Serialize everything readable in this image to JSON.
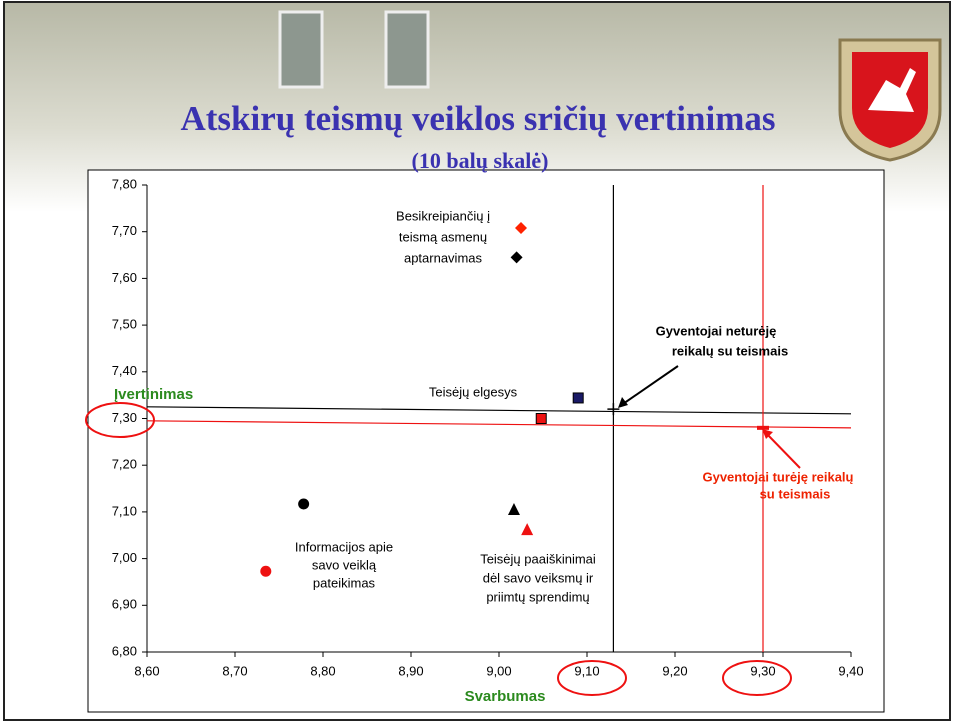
{
  "chart_data": {
    "type": "scatter",
    "title": "Atskirų teismų veiklos sričių vertinimas",
    "subtitle": "(10 balų skalė)",
    "x_label": "Svarbumas",
    "y_label": "Įvertinimas",
    "xlim": [
      8.6,
      9.4
    ],
    "ylim": [
      6.8,
      7.8
    ],
    "xticks": [
      {
        "value": 8.6,
        "label": "8,60"
      },
      {
        "value": 8.7,
        "label": "8,70"
      },
      {
        "value": 8.8,
        "label": "8,80"
      },
      {
        "value": 8.9,
        "label": "8,90"
      },
      {
        "value": 9.0,
        "label": "9,00"
      },
      {
        "value": 9.1,
        "label": "9,10"
      },
      {
        "value": 9.2,
        "label": "9,20"
      },
      {
        "value": 9.3,
        "label": "9,30"
      },
      {
        "value": 9.4,
        "label": "9,40"
      }
    ],
    "yticks": [
      {
        "value": 6.8,
        "label": "6,80"
      },
      {
        "value": 6.9,
        "label": "6,90"
      },
      {
        "value": 7.0,
        "label": "7,00"
      },
      {
        "value": 7.1,
        "label": "7,10"
      },
      {
        "value": 7.2,
        "label": "7,20"
      },
      {
        "value": 7.3,
        "label": "7,30"
      },
      {
        "value": 7.4,
        "label": "7,40"
      },
      {
        "value": 7.5,
        "label": "7,50"
      },
      {
        "value": 7.6,
        "label": "7,60"
      },
      {
        "value": 7.7,
        "label": "7,70"
      },
      {
        "value": 7.8,
        "label": "7,80"
      }
    ],
    "points": [
      {
        "x": 9.02,
        "y": 7.645,
        "color": "#000000",
        "marker": "diamond"
      },
      {
        "x": 9.025,
        "y": 7.708,
        "color": "#ff2200",
        "marker": "diamond"
      },
      {
        "x": 9.09,
        "y": 7.344,
        "color": "#1a1a66",
        "marker": "square"
      },
      {
        "x": 9.048,
        "y": 7.3,
        "color": "#ee1111",
        "marker": "square"
      },
      {
        "x": 8.778,
        "y": 7.117,
        "color": "#000000",
        "marker": "circle"
      },
      {
        "x": 8.735,
        "y": 6.973,
        "color": "#ee1111",
        "marker": "circle"
      },
      {
        "x": 9.017,
        "y": 7.104,
        "color": "#000000",
        "marker": "triangle"
      },
      {
        "x": 9.032,
        "y": 7.061,
        "color": "#ee1111",
        "marker": "triangle"
      },
      {
        "x": 9.13,
        "y": 7.32,
        "color": "#000000",
        "marker": "cross"
      },
      {
        "x": 9.3,
        "y": 7.28,
        "color": "#ee1111",
        "marker": "dash"
      }
    ],
    "reference_lines": [
      {
        "x": [
          8.6,
          9.4
        ],
        "y": [
          7.325,
          7.31
        ],
        "color": "#000000"
      },
      {
        "x": [
          9.13,
          9.13
        ],
        "y": [
          6.8,
          7.8
        ],
        "color": "#000000"
      },
      {
        "x": [
          8.6,
          9.4
        ],
        "y": [
          7.295,
          7.28
        ],
        "color": "#ee1111"
      },
      {
        "x": [
          9.3,
          9.3
        ],
        "y": [
          6.8,
          7.8
        ],
        "color": "#ee1111"
      }
    ],
    "annotations": [
      {
        "lines": [
          "Besikreipiančių į",
          "teismą asmenų",
          "aptarnavimas"
        ],
        "color": "#000000",
        "bold": false
      },
      {
        "lines": [
          "Gyventojai neturėję",
          "reikalų su teismais"
        ],
        "color": "#000000",
        "bold": true
      },
      {
        "lines": [
          "Teisėjų elgesys"
        ],
        "color": "#000000",
        "bold": false
      },
      {
        "lines": [
          "Gyventojai turėję reikalų",
          "su teismais"
        ],
        "color": "#ee2200",
        "bold": true
      },
      {
        "lines": [
          "Informacijos apie",
          "savo veiklą",
          "pateikimas"
        ],
        "color": "#000000",
        "bold": false
      },
      {
        "lines": [
          "Teisėjų paaiškinimai",
          "dėl savo veiksmų ir",
          "priimtų sprendimų"
        ],
        "color": "#000000",
        "bold": false
      }
    ]
  }
}
